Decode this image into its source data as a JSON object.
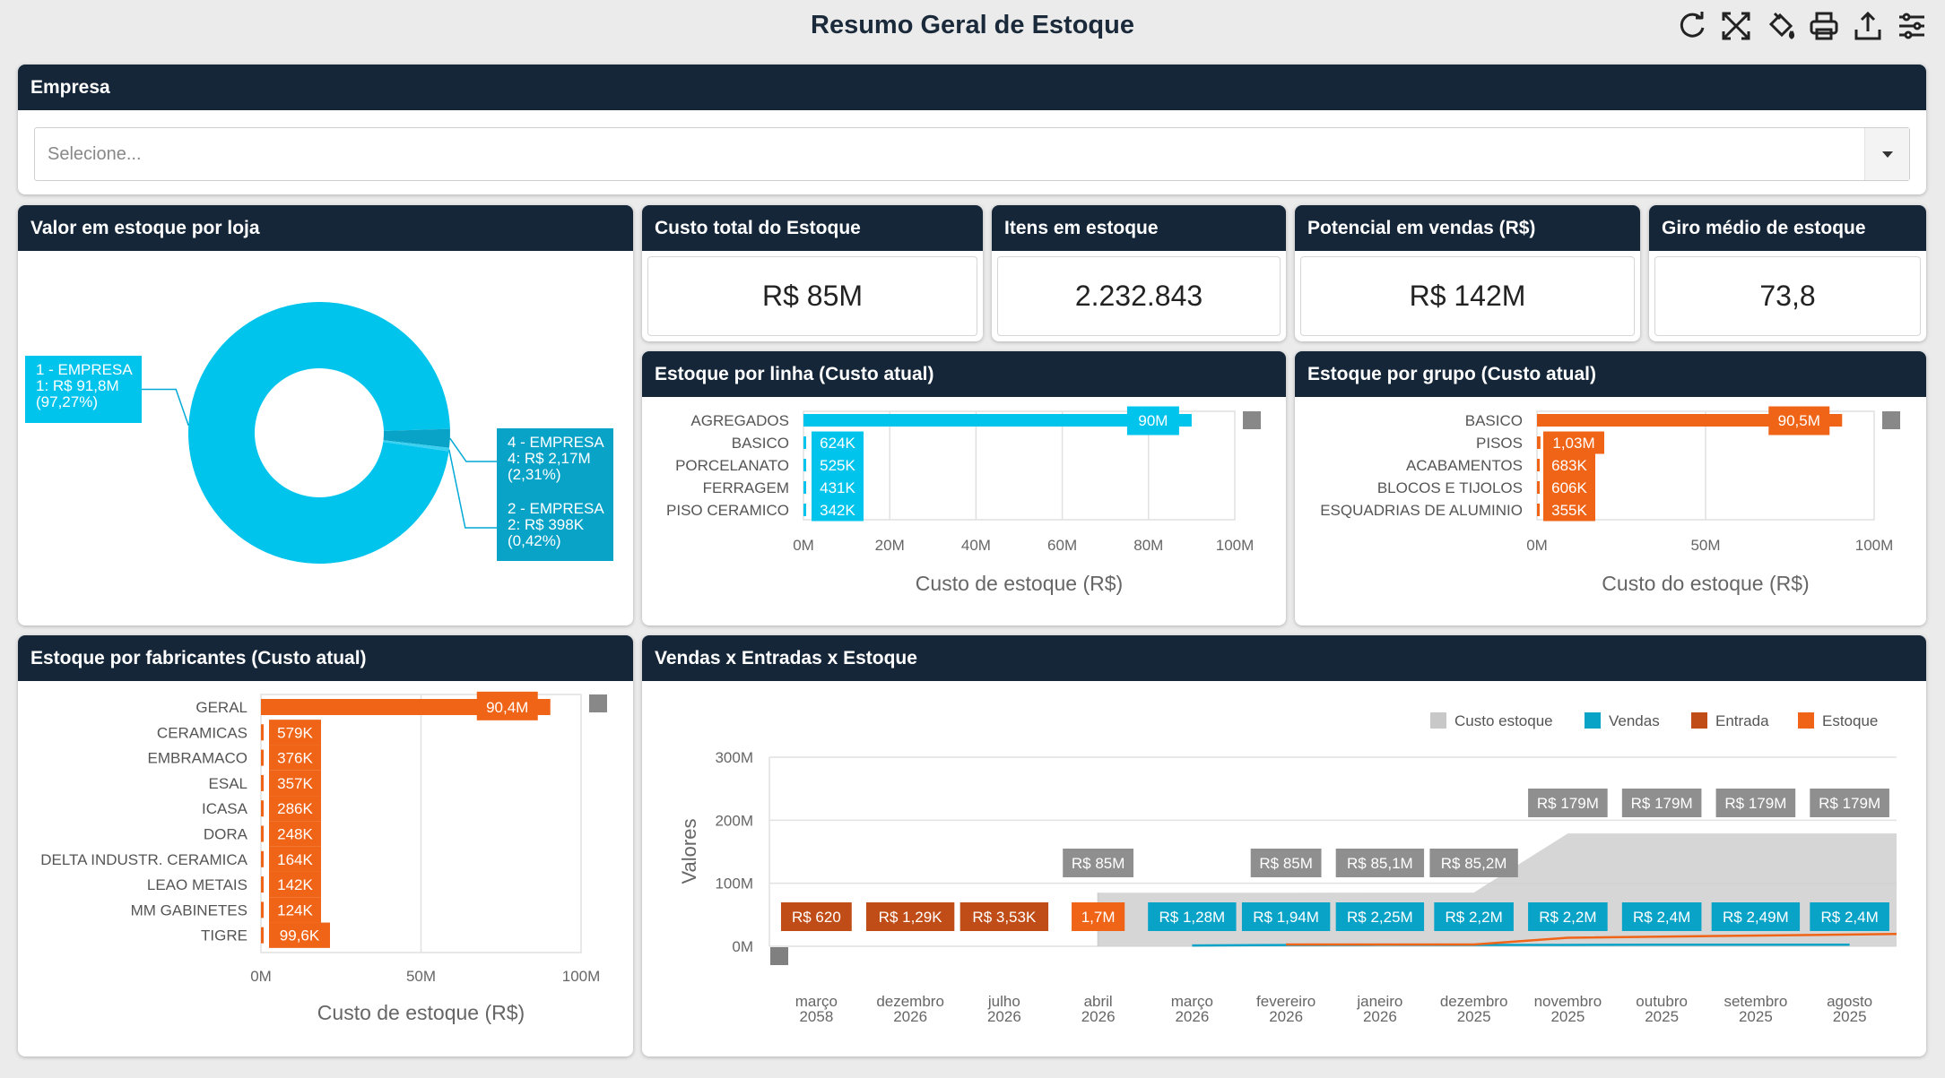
{
  "header": {
    "title": "Resumo Geral de Estoque"
  },
  "toolbar": {
    "icons": [
      "refresh-icon",
      "fullscreen-icon",
      "paint-bucket-icon",
      "print-icon",
      "export-icon",
      "filter-settings-icon"
    ]
  },
  "empresa": {
    "title": "Empresa",
    "placeholder": "Selecione..."
  },
  "kpis": {
    "custo_total": {
      "title": "Custo total do Estoque",
      "value": "R$ 85M"
    },
    "itens": {
      "title": "Itens em estoque",
      "value": "2.232.843"
    },
    "potencial": {
      "title": "Potencial em vendas (R$)",
      "value": "R$ 142M"
    },
    "giro": {
      "title": "Giro médio de estoque",
      "value": "73,8"
    }
  },
  "colors": {
    "header": "#142638",
    "blue": "#00c4ec",
    "blue_dark": "#0aa3c8",
    "orange": "#ef6417",
    "orange_dark": "#c04d17",
    "gray": "#c8c8c8"
  },
  "donut": {
    "title": "Valor em estoque por loja",
    "chart_data": {
      "type": "pie",
      "slices": [
        {
          "label_lines": [
            "1 - EMPRESA",
            "1: R$ 91,8M",
            "(97,27%)"
          ],
          "value": 97.27
        },
        {
          "label_lines": [
            "4 - EMPRESA",
            "4: R$ 2,17M",
            "(2,31%)"
          ],
          "value": 2.31
        },
        {
          "label_lines": [
            "2 - EMPRESA",
            "2: R$ 398K",
            "(0,42%)"
          ],
          "value": 0.42
        }
      ]
    }
  },
  "linha": {
    "title": "Estoque por linha (Custo atual)",
    "chart_data": {
      "type": "bar",
      "orientation": "horizontal",
      "categories": [
        "AGREGADOS",
        "BASICO",
        "PORCELANATO",
        "FERRAGEM",
        "PISO CERAMICO"
      ],
      "values": [
        90,
        0.624,
        0.525,
        0.431,
        0.342
      ],
      "labels": [
        "90M",
        "624K",
        "525K",
        "431K",
        "342K"
      ],
      "xticks": [
        "0M",
        "20M",
        "40M",
        "60M",
        "80M",
        "100M"
      ],
      "xlim": [
        0,
        100
      ],
      "xlabel": "Custo de estoque (R$)"
    }
  },
  "grupo": {
    "title": "Estoque por grupo (Custo atual)",
    "chart_data": {
      "type": "bar",
      "orientation": "horizontal",
      "categories": [
        "BASICO",
        "PISOS",
        "ACABAMENTOS",
        "BLOCOS E TIJOLOS",
        "ESQUADRIAS DE ALUMINIO"
      ],
      "values": [
        90.5,
        1.03,
        0.683,
        0.606,
        0.355
      ],
      "labels": [
        "90,5M",
        "1,03M",
        "683K",
        "606K",
        "355K"
      ],
      "xticks": [
        "0M",
        "50M",
        "100M"
      ],
      "xlim": [
        0,
        100
      ],
      "xlabel": "Custo do estoque (R$)"
    }
  },
  "fabricantes": {
    "title": "Estoque por fabricantes (Custo atual)",
    "chart_data": {
      "type": "bar",
      "orientation": "horizontal",
      "categories": [
        "GERAL",
        "CERAMICAS",
        "EMBRAMACO",
        "ESAL",
        "ICASA",
        "DORA",
        "DELTA INDUSTR. CERAMICA",
        "LEAO METAIS",
        "MM GABINETES",
        "TIGRE"
      ],
      "values": [
        90.4,
        0.579,
        0.376,
        0.357,
        0.286,
        0.248,
        0.164,
        0.142,
        0.124,
        0.0996
      ],
      "labels": [
        "90,4M",
        "579K",
        "376K",
        "357K",
        "286K",
        "248K",
        "164K",
        "142K",
        "124K",
        "99,6K"
      ],
      "xticks": [
        "0M",
        "50M",
        "100M"
      ],
      "xlim": [
        0,
        100
      ],
      "xlabel": "Custo de estoque (R$)"
    }
  },
  "vendas": {
    "title": "Vendas x Entradas x Estoque",
    "chart_data": {
      "type": "line",
      "legend_position": "top-right",
      "series": [
        {
          "name": "Custo estoque",
          "color": "#c8c8c8",
          "values": [
            null,
            null,
            null,
            85,
            null,
            85,
            85.1,
            85.2,
            179,
            179,
            179,
            179
          ],
          "labels": [
            "",
            "",
            "",
            "R$ 85M",
            "",
            "R$ 85M",
            "R$ 85,1M",
            "R$ 85,2M",
            "R$ 179M",
            "R$ 179M",
            "R$ 179M",
            "R$ 179M"
          ]
        },
        {
          "name": "Vendas",
          "color": "#0aa3c8",
          "values": [
            null,
            null,
            null,
            null,
            1.28,
            1.94,
            2.25,
            2.2,
            2.2,
            2.4,
            2.49,
            2.4
          ],
          "labels": [
            "",
            "",
            "",
            "",
            "R$ 1,28M",
            "R$ 1,94M",
            "R$ 2,25M",
            "R$ 2,2M",
            "R$ 2,2M",
            "R$ 2,4M",
            "R$ 2,49M",
            "R$ 2,4M"
          ]
        },
        {
          "name": "Entrada",
          "color": "#c04d17",
          "values": [
            0.00062,
            0.00129,
            0.00353,
            null,
            null,
            null,
            null,
            null,
            null,
            null,
            null,
            null
          ],
          "labels": [
            "R$ 620",
            "R$ 1,29K",
            "R$ 3,53K",
            "",
            "",
            "",
            "",
            "",
            "",
            "",
            "",
            ""
          ]
        },
        {
          "name": "Estoque",
          "color": "#ef6417",
          "values": [
            null,
            null,
            null,
            1.7,
            null,
            null,
            null,
            null,
            null,
            null,
            null,
            null
          ],
          "labels": [
            "",
            "",
            "",
            "1,7M",
            "",
            "",
            "",
            "",
            "",
            "",
            "",
            ""
          ]
        }
      ],
      "x": [
        [
          "março",
          "2058"
        ],
        [
          "dezembro",
          "2026"
        ],
        [
          "julho",
          "2026"
        ],
        [
          "abril",
          "2026"
        ],
        [
          "março",
          "2026"
        ],
        [
          "fevereiro",
          "2026"
        ],
        [
          "janeiro",
          "2026"
        ],
        [
          "dezembro",
          "2025"
        ],
        [
          "novembro",
          "2025"
        ],
        [
          "outubro",
          "2025"
        ],
        [
          "setembro",
          "2025"
        ],
        [
          "agosto",
          "2025"
        ]
      ],
      "yticks": [
        "0M",
        "100M",
        "200M",
        "300M"
      ],
      "ylim": [
        0,
        300
      ],
      "ylabel": "Valores"
    }
  }
}
